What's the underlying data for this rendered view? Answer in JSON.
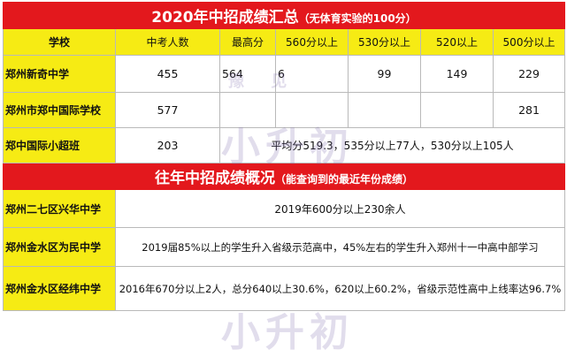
{
  "section1": {
    "title": "2020年中招成绩汇总",
    "subtitle": "（无体育实验的100分）",
    "headers": [
      "学校",
      "中考人数",
      "最高分",
      "560分以上",
      "530分以上",
      "520以上",
      "500分以上"
    ],
    "rows": [
      {
        "school": "郑州新奇中学",
        "count": "455",
        "max": "564",
        "s560": "6",
        "s530": "99",
        "s520": "149",
        "s500": "229"
      },
      {
        "school": "郑州市郑中国际学校",
        "count": "577",
        "max": "",
        "s560": "",
        "s530": "",
        "s520": "",
        "s500": "281"
      },
      {
        "school": "郑中国际小超班",
        "count": "203",
        "note": "平均分519.3，535分以上77人，530分以上105人"
      }
    ]
  },
  "section2": {
    "title": "往年中招成绩概况",
    "subtitle": "（能查询到的最近年份成绩）",
    "rows": [
      {
        "school": "郑州二七区兴华中学",
        "note": "2019年600分以上230余人"
      },
      {
        "school": "郑州金水区为民中学",
        "note": "2019届85%以上的学生升入省级示范高中，45%左右的学生升入郑州十一中高中部学习"
      },
      {
        "school": "郑州金水区经纬中学",
        "note": "2016年670分以上2人，总分640以上30.6%，620以上60.2%，省级示范性高中上线率达96.7%"
      }
    ]
  },
  "watermark": {
    "top": "豫 见",
    "big": "小升初"
  },
  "colors": {
    "red": "#e3181d",
    "yellow": "#f6eb14",
    "border": "#b9b9b9"
  }
}
